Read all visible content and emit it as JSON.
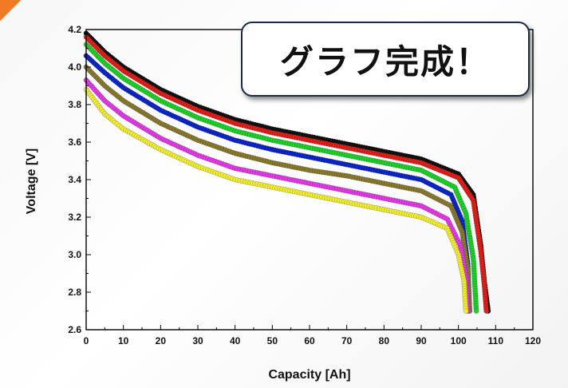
{
  "callout": {
    "text": "グラフ完成！"
  },
  "colors": {
    "ribbon": "#f07a25",
    "series": [
      "#111111",
      "#e0201b",
      "#1fd12a",
      "#0b27c8",
      "#8a7a30",
      "#e33be6",
      "#f2ee33"
    ]
  },
  "chart_data": {
    "type": "scatter",
    "title": "",
    "xlabel": "Capacity [Ah]",
    "ylabel": "Voltage [V]",
    "xlim": [
      0,
      120
    ],
    "ylim": [
      2.6,
      4.2
    ],
    "xticks": [
      "0",
      "10",
      "20",
      "30",
      "40",
      "50",
      "60",
      "70",
      "80",
      "90",
      "100",
      "110",
      "120"
    ],
    "yticks": [
      "2.6",
      "2.8",
      "3.0",
      "3.2",
      "3.4",
      "3.6",
      "3.8",
      "4.0",
      "4.2"
    ],
    "grid": false,
    "series": [
      {
        "color": "#111111",
        "points": [
          [
            0,
            4.18
          ],
          [
            5,
            4.08
          ],
          [
            10,
            4.0
          ],
          [
            20,
            3.88
          ],
          [
            30,
            3.79
          ],
          [
            40,
            3.72
          ],
          [
            50,
            3.67
          ],
          [
            60,
            3.63
          ],
          [
            70,
            3.59
          ],
          [
            80,
            3.55
          ],
          [
            90,
            3.51
          ],
          [
            100,
            3.43
          ],
          [
            104,
            3.32
          ],
          [
            106,
            3.05
          ],
          [
            107,
            2.85
          ],
          [
            108,
            2.7
          ]
        ]
      },
      {
        "color": "#e0201b",
        "points": [
          [
            0,
            4.16
          ],
          [
            5,
            4.06
          ],
          [
            10,
            3.98
          ],
          [
            20,
            3.86
          ],
          [
            30,
            3.77
          ],
          [
            40,
            3.7
          ],
          [
            50,
            3.65
          ],
          [
            60,
            3.61
          ],
          [
            70,
            3.57
          ],
          [
            80,
            3.53
          ],
          [
            90,
            3.49
          ],
          [
            100,
            3.41
          ],
          [
            104,
            3.29
          ],
          [
            106,
            3.02
          ],
          [
            107,
            2.83
          ],
          [
            107.5,
            2.7
          ]
        ]
      },
      {
        "color": "#1fd12a",
        "points": [
          [
            0,
            4.12
          ],
          [
            5,
            4.02
          ],
          [
            10,
            3.94
          ],
          [
            20,
            3.82
          ],
          [
            30,
            3.73
          ],
          [
            40,
            3.66
          ],
          [
            50,
            3.61
          ],
          [
            60,
            3.57
          ],
          [
            70,
            3.53
          ],
          [
            80,
            3.49
          ],
          [
            90,
            3.45
          ],
          [
            99,
            3.36
          ],
          [
            102,
            3.22
          ],
          [
            104,
            2.98
          ],
          [
            104.8,
            2.7
          ]
        ]
      },
      {
        "color": "#0b27c8",
        "points": [
          [
            0,
            4.06
          ],
          [
            5,
            3.97
          ],
          [
            10,
            3.89
          ],
          [
            20,
            3.77
          ],
          [
            30,
            3.68
          ],
          [
            40,
            3.61
          ],
          [
            50,
            3.56
          ],
          [
            60,
            3.52
          ],
          [
            70,
            3.48
          ],
          [
            80,
            3.44
          ],
          [
            90,
            3.4
          ],
          [
            98,
            3.32
          ],
          [
            101,
            3.18
          ],
          [
            102.5,
            2.95
          ],
          [
            103,
            2.7
          ]
        ]
      },
      {
        "color": "#8a7a30",
        "points": [
          [
            0,
            4.0
          ],
          [
            5,
            3.9
          ],
          [
            10,
            3.82
          ],
          [
            20,
            3.7
          ],
          [
            30,
            3.61
          ],
          [
            40,
            3.54
          ],
          [
            50,
            3.49
          ],
          [
            60,
            3.45
          ],
          [
            70,
            3.42
          ],
          [
            80,
            3.38
          ],
          [
            90,
            3.34
          ],
          [
            98,
            3.26
          ],
          [
            101,
            3.12
          ],
          [
            102.5,
            2.92
          ],
          [
            103,
            2.7
          ]
        ]
      },
      {
        "color": "#e33be6",
        "points": [
          [
            0,
            3.93
          ],
          [
            5,
            3.82
          ],
          [
            10,
            3.74
          ],
          [
            20,
            3.62
          ],
          [
            30,
            3.53
          ],
          [
            40,
            3.46
          ],
          [
            50,
            3.42
          ],
          [
            60,
            3.38
          ],
          [
            70,
            3.34
          ],
          [
            80,
            3.3
          ],
          [
            90,
            3.26
          ],
          [
            97,
            3.19
          ],
          [
            100.5,
            3.05
          ],
          [
            102,
            2.88
          ],
          [
            102.5,
            2.7
          ]
        ]
      },
      {
        "color": "#f2ee33",
        "points": [
          [
            0,
            3.88
          ],
          [
            5,
            3.75
          ],
          [
            10,
            3.67
          ],
          [
            20,
            3.56
          ],
          [
            30,
            3.47
          ],
          [
            40,
            3.4
          ],
          [
            50,
            3.36
          ],
          [
            60,
            3.32
          ],
          [
            70,
            3.28
          ],
          [
            80,
            3.24
          ],
          [
            90,
            3.2
          ],
          [
            97,
            3.14
          ],
          [
            100,
            3.0
          ],
          [
            101.5,
            2.86
          ],
          [
            102,
            2.7
          ]
        ]
      }
    ]
  }
}
